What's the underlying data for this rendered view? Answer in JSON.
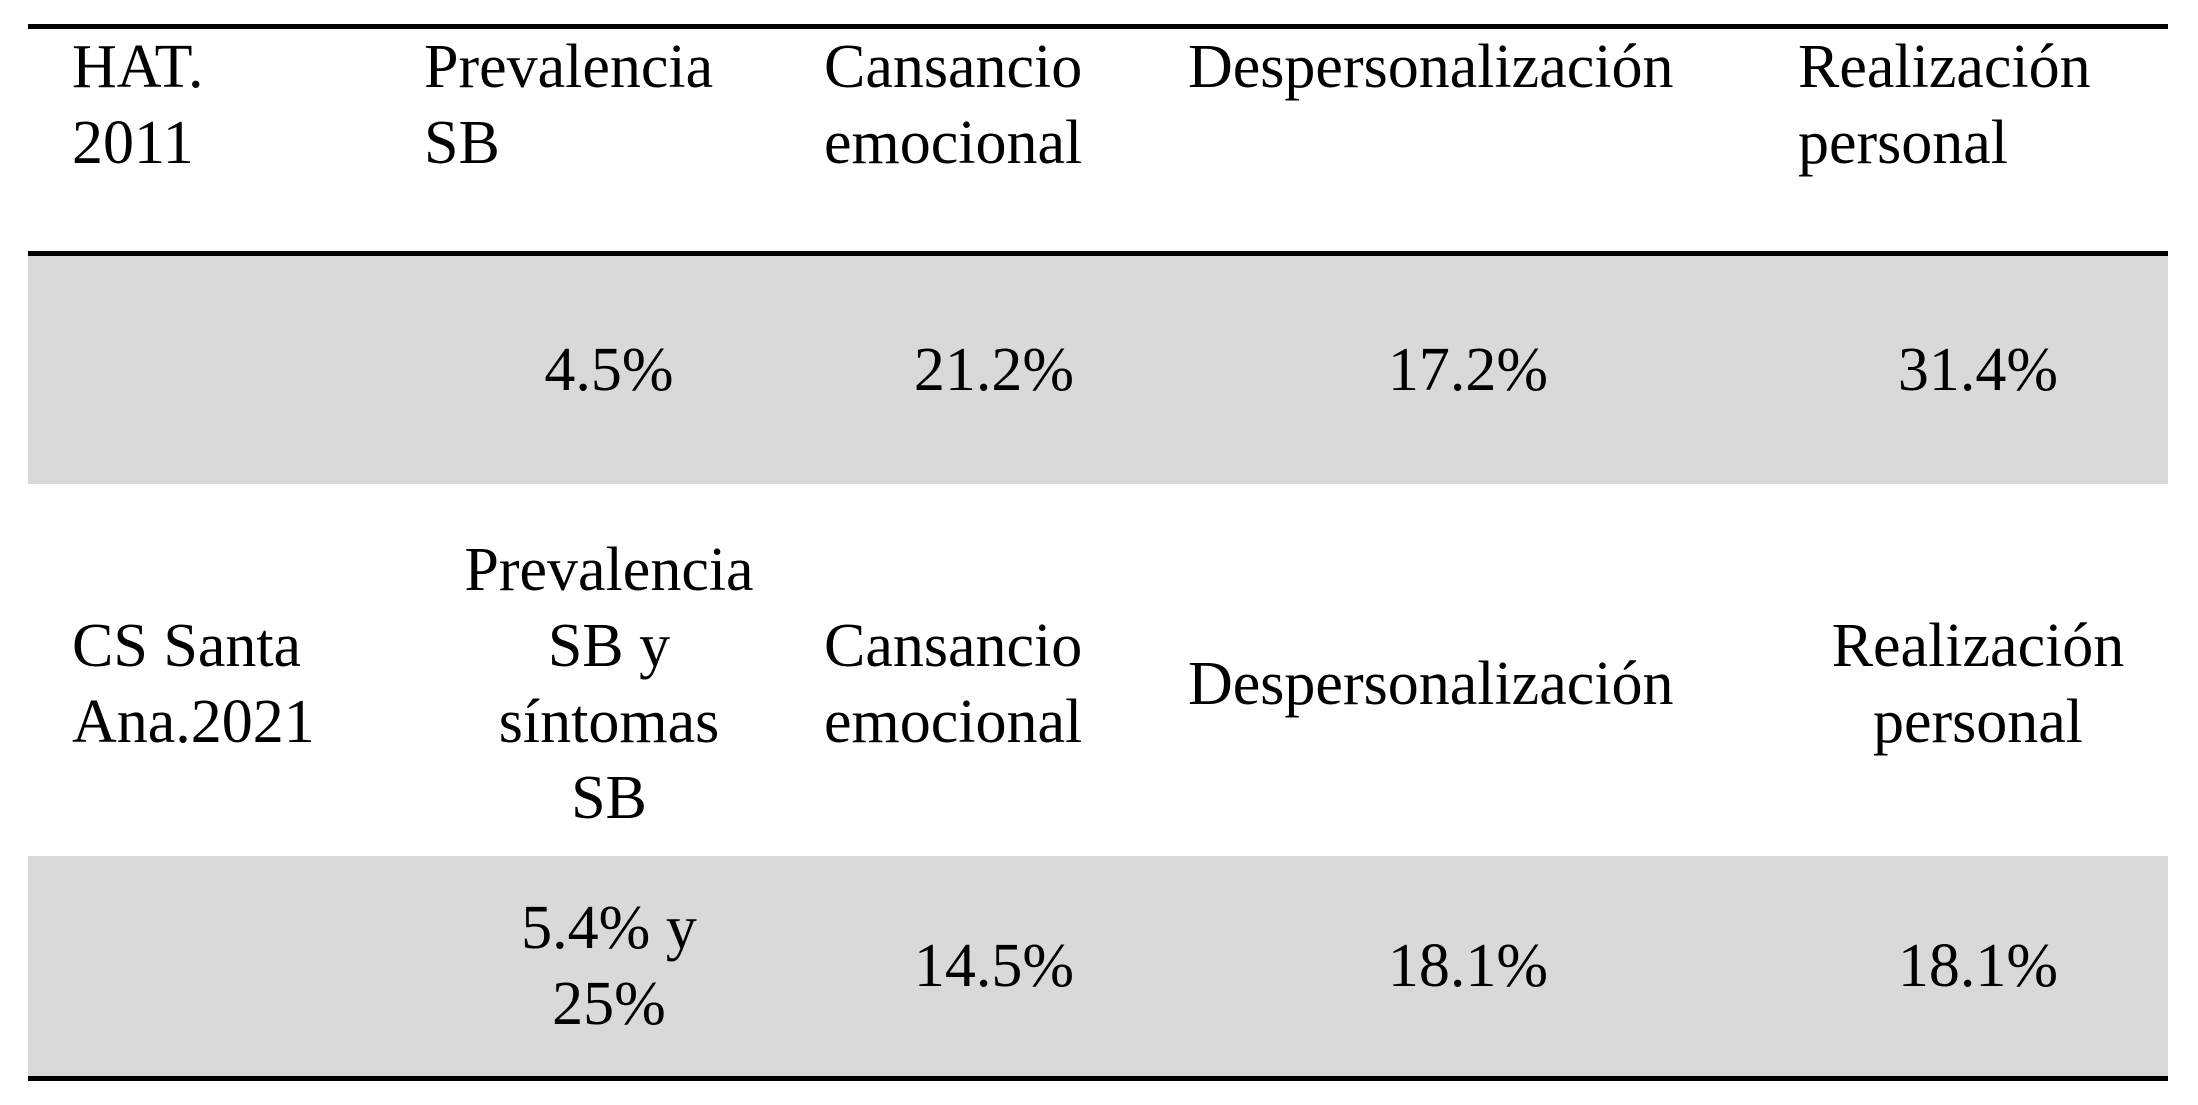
{
  "table": {
    "rows": [
      {
        "study": "HAT.\n2011",
        "prevalence": "Prevalencia\nSB",
        "emotional_exhaustion": "Cansancio\nemocional",
        "depersonalization": "Despersonalización",
        "personal_accomplishment": "Realización\npersonal"
      },
      {
        "study": "",
        "prevalence": "4.5%",
        "emotional_exhaustion": "21.2%",
        "depersonalization": "17.2%",
        "personal_accomplishment": "31.4%"
      },
      {
        "study": "CS Santa\nAna.2021",
        "prevalence": "Prevalencia\nSB y\nsíntomas\nSB",
        "emotional_exhaustion": "Cansancio\nemocional",
        "depersonalization": "Despersonalización",
        "personal_accomplishment": "Realización\npersonal"
      },
      {
        "study": "",
        "prevalence": "5.4% y\n25%",
        "emotional_exhaustion": "14.5%",
        "depersonalization": "18.1%",
        "personal_accomplishment": "18.1%"
      }
    ]
  },
  "colors": {
    "shade": "#d9d9d9",
    "rule": "#000000"
  }
}
